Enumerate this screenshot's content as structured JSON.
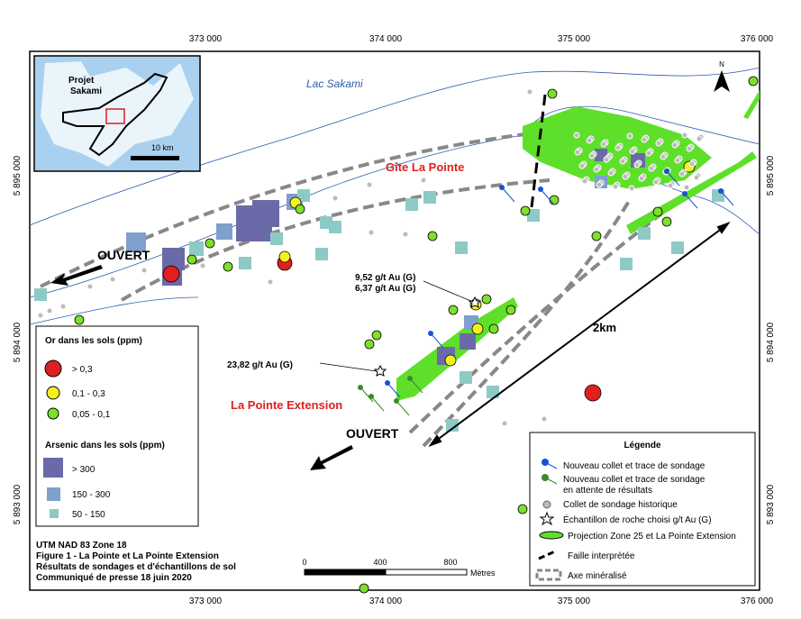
{
  "map": {
    "top_ticks": [
      "373 000",
      "374 000",
      "375 000",
      "376 000"
    ],
    "bottom_ticks": [
      "373 000",
      "374 000",
      "375 000",
      "376 000"
    ],
    "left_ticks": [
      "5 895 000",
      "5 894 000",
      "5 893 000"
    ],
    "right_ticks": [
      "5 895 000",
      "5 894 000",
      "5 893 000"
    ],
    "labels": {
      "lake": "Lac Sakami",
      "gite": "Gîte La Pointe",
      "open_1": "OUVERT",
      "open_2": "OUVERT",
      "extension": "La Pointe Extension",
      "sample_1": "9,52 g/t Au (G)",
      "sample_2": "6,37 g/t Au (G)",
      "sample_3": "23,82 g/t Au (G)",
      "distance": "2km",
      "north": "N"
    }
  },
  "inset": {
    "project": [
      "Projet",
      "Sakami"
    ],
    "scale": "10 km"
  },
  "soil_legend": {
    "gold_title": "Or dans les sols (ppm)",
    "gold_classes": [
      "> 0,3",
      "0,1 - 0,3",
      "0,05 - 0,1"
    ],
    "arsenic_title": "Arsenic dans les sols (ppm)",
    "arsenic_classes": [
      "> 300",
      "150 - 300",
      "50 - 150"
    ]
  },
  "legend": {
    "title": "Légende",
    "items": [
      [
        "Nouveau collet et trace de sondage"
      ],
      [
        "Nouveau collet et trace de sondage",
        "en attente de résultats"
      ],
      [
        "Collet de sondage historique"
      ],
      [
        "Échantillon de roche choisi g/t Au (G)"
      ],
      [
        "Projection Zone 25 et La Pointe Extension"
      ],
      [
        "Faille interprétée"
      ],
      [
        "Axe minéralisé"
      ]
    ]
  },
  "caption": [
    "UTM NAD 83 Zone 18",
    "Figure 1 - La Pointe et La Pointe Extension",
    "Résultats de sondages et d'échantillons de sol",
    "Communiqué de presse 18 juin 2020"
  ],
  "scale_bar": {
    "ticks": [
      "0",
      "400",
      "800"
    ],
    "unit": "Mètres"
  }
}
